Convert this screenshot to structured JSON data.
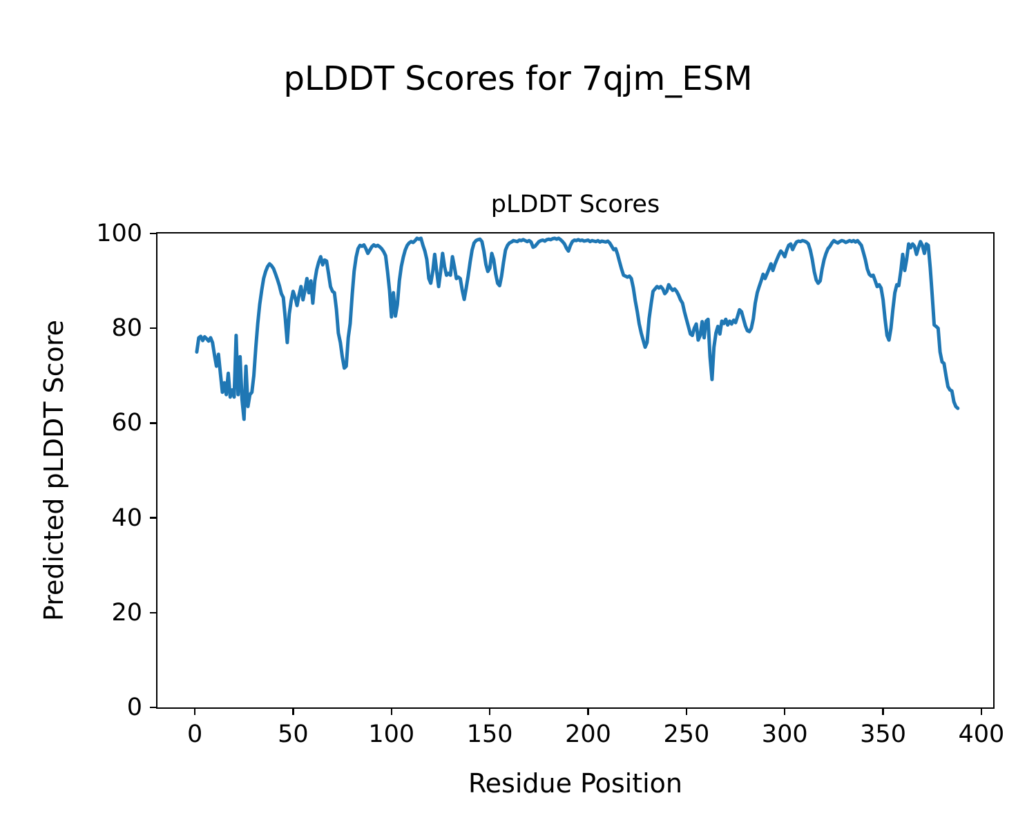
{
  "figure": {
    "title": "pLDDT Scores for 7qjm_ESM",
    "background_color": "#ffffff",
    "text_color": "#000000"
  },
  "axes": {
    "title": "pLDDT Scores",
    "xlabel": "Residue Position",
    "ylabel": "Predicted pLDDT Score",
    "x_ticks": [
      0,
      50,
      100,
      150,
      200,
      250,
      300,
      350,
      400
    ],
    "y_ticks": [
      0,
      20,
      40,
      60,
      80,
      100
    ],
    "x_range": [
      -19,
      406
    ],
    "y_range": [
      0,
      100
    ],
    "grid": false,
    "spine_color": "#000000"
  },
  "chart_data": {
    "type": "line",
    "title": "pLDDT Scores",
    "suptitle": "pLDDT Scores for 7qjm_ESM",
    "xlabel": "Residue Position",
    "ylabel": "Predicted pLDDT Score",
    "xlim": [
      -19,
      406
    ],
    "ylim": [
      0,
      100
    ],
    "grid": false,
    "legend_position": "none",
    "series": [
      {
        "name": "pLDDT",
        "color": "#1f77b4",
        "line_width": 5,
        "x_start": 1,
        "x_step": 1,
        "values": [
          75.0,
          78.0,
          78.3,
          77.4,
          78.2,
          77.8,
          77.3,
          78.0,
          77.0,
          74.3,
          72.0,
          74.5,
          70.5,
          66.5,
          68.5,
          66.0,
          70.5,
          65.5,
          67.0,
          65.5,
          78.5,
          66.0,
          74.0,
          65.0,
          60.8,
          72.0,
          63.5,
          66.0,
          66.5,
          70.0,
          76.0,
          81.0,
          85.0,
          88.0,
          90.5,
          92.0,
          93.0,
          93.6,
          93.2,
          92.6,
          91.5,
          90.3,
          89.0,
          87.3,
          86.5,
          82.0,
          77.0,
          83.0,
          85.8,
          87.8,
          86.5,
          84.8,
          87.0,
          88.8,
          86.0,
          88.0,
          90.5,
          87.5,
          90.0,
          85.3,
          90.0,
          92.4,
          94.0,
          95.1,
          93.4,
          94.4,
          94.2,
          91.5,
          88.8,
          87.8,
          87.5,
          84.0,
          79.0,
          77.0,
          74.0,
          71.6,
          72.0,
          78.0,
          81.0,
          87.0,
          92.0,
          95.0,
          96.8,
          97.5,
          97.3,
          97.6,
          96.8,
          95.8,
          96.5,
          97.2,
          97.6,
          97.3,
          97.5,
          97.2,
          96.8,
          96.2,
          95.3,
          92.0,
          88.0,
          82.4,
          87.5,
          82.6,
          85.0,
          90.0,
          93.0,
          95.0,
          96.5,
          97.5,
          98.0,
          98.3,
          98.1,
          98.5,
          99.0,
          98.8,
          99.0,
          97.5,
          96.3,
          94.5,
          90.5,
          89.5,
          92.0,
          95.6,
          92.0,
          88.8,
          92.0,
          95.8,
          93.0,
          91.2,
          91.6,
          91.2,
          95.1,
          93.0,
          90.5,
          90.8,
          90.5,
          88.0,
          86.1,
          88.5,
          91.0,
          94.0,
          96.5,
          98.0,
          98.5,
          98.7,
          98.8,
          98.3,
          96.3,
          93.5,
          92.0,
          92.7,
          95.8,
          94.5,
          91.5,
          89.5,
          89.0,
          91.0,
          94.0,
          96.5,
          97.5,
          98.0,
          98.2,
          98.5,
          98.4,
          98.3,
          98.6,
          98.5,
          98.7,
          98.5,
          98.3,
          98.5,
          98.2,
          97.1,
          97.3,
          97.8,
          98.3,
          98.5,
          98.6,
          98.4,
          98.7,
          98.8,
          98.7,
          98.9,
          99.0,
          98.8,
          99.0,
          98.7,
          98.3,
          97.8,
          96.9,
          96.3,
          97.5,
          98.3,
          98.6,
          98.5,
          98.7,
          98.5,
          98.6,
          98.4,
          98.5,
          98.6,
          98.3,
          98.5,
          98.4,
          98.3,
          98.5,
          98.2,
          98.4,
          98.3,
          98.2,
          98.4,
          98.0,
          97.3,
          96.6,
          96.8,
          95.6,
          94.0,
          92.5,
          91.2,
          91.0,
          90.8,
          91.0,
          90.5,
          88.5,
          85.8,
          83.5,
          80.9,
          79.0,
          77.5,
          76.0,
          77.0,
          82.0,
          85.0,
          87.8,
          88.3,
          88.8,
          88.5,
          88.8,
          88.3,
          87.3,
          87.8,
          89.2,
          88.5,
          88.0,
          88.3,
          87.8,
          87.0,
          86.0,
          85.3,
          83.5,
          81.9,
          80.4,
          78.8,
          78.5,
          80.0,
          80.9,
          77.5,
          78.5,
          81.4,
          78.0,
          81.5,
          81.9,
          74.0,
          69.2,
          76.0,
          79.0,
          80.4,
          78.8,
          81.5,
          81.0,
          81.9,
          80.7,
          81.5,
          80.9,
          81.7,
          81.2,
          82.5,
          83.9,
          83.5,
          82.0,
          80.5,
          79.5,
          79.3,
          80.0,
          82.0,
          85.3,
          87.5,
          88.8,
          90.0,
          91.4,
          90.5,
          91.5,
          92.5,
          93.6,
          92.2,
          93.5,
          94.5,
          95.5,
          96.3,
          95.8,
          95.1,
          96.5,
          97.5,
          97.8,
          96.6,
          97.5,
          98.2,
          98.4,
          98.3,
          98.5,
          98.4,
          98.2,
          97.8,
          96.5,
          94.5,
          92.0,
          90.2,
          89.5,
          90.0,
          92.5,
          94.5,
          95.8,
          96.8,
          97.3,
          98.0,
          98.5,
          98.2,
          98.0,
          98.3,
          98.5,
          98.4,
          98.1,
          98.3,
          98.5,
          98.3,
          98.5,
          98.2,
          98.5,
          98.0,
          97.5,
          96.0,
          94.5,
          92.5,
          91.4,
          91.0,
          91.2,
          90.0,
          88.8,
          89.2,
          88.5,
          86.0,
          82.0,
          78.5,
          77.5,
          80.0,
          84.0,
          87.5,
          89.2,
          89.0,
          92.0,
          95.6,
          92.2,
          94.5,
          97.8,
          97.0,
          97.8,
          97.3,
          95.6,
          97.0,
          98.3,
          97.5,
          95.8,
          97.8,
          97.5,
          92.7,
          87.0,
          80.7,
          80.4,
          80.0,
          75.0,
          72.9,
          72.6,
          70.0,
          67.7,
          67.0,
          66.8,
          64.5,
          63.5,
          63.1
        ]
      }
    ]
  }
}
